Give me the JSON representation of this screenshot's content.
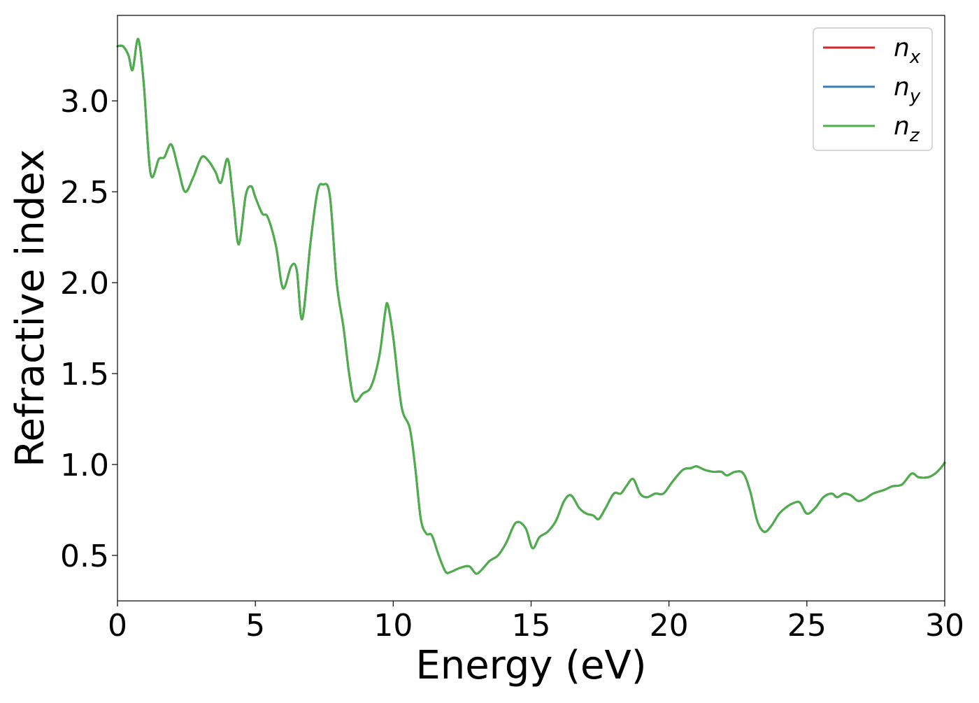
{
  "chart_data": {
    "type": "line",
    "title": "",
    "xlabel": "Energy (eV)",
    "ylabel": "Refractive index",
    "xlim": [
      0,
      30
    ],
    "ylim": [
      0.25,
      3.47
    ],
    "xticks": [
      0,
      5,
      10,
      15,
      20,
      25,
      30
    ],
    "xtick_labels": [
      "0",
      "5",
      "10",
      "15",
      "20",
      "25",
      "30"
    ],
    "yticks": [
      0.5,
      1.0,
      1.5,
      2.0,
      2.5,
      3.0
    ],
    "ytick_labels": [
      "0.5",
      "1.0",
      "1.5",
      "2.0",
      "2.5",
      "3.0"
    ],
    "grid": false,
    "legend_position": "top-right",
    "x": [
      0,
      0.2,
      0.4,
      0.55,
      0.75,
      0.95,
      1.2,
      1.5,
      1.7,
      1.95,
      2.2,
      2.45,
      2.75,
      3.05,
      3.3,
      3.55,
      3.75,
      4.0,
      4.2,
      4.4,
      4.65,
      4.85,
      5.0,
      5.25,
      5.45,
      5.75,
      6.0,
      6.3,
      6.5,
      6.7,
      7.0,
      7.25,
      7.45,
      7.7,
      7.95,
      8.2,
      8.4,
      8.6,
      8.9,
      9.2,
      9.5,
      9.7,
      9.8,
      10.0,
      10.3,
      10.6,
      10.8,
      11.0,
      11.2,
      11.4,
      11.65,
      11.9,
      12.1,
      12.4,
      12.75,
      13.0,
      13.2,
      13.5,
      13.8,
      14.1,
      14.45,
      14.8,
      15.05,
      15.3,
      15.6,
      15.9,
      16.2,
      16.45,
      16.75,
      17.0,
      17.25,
      17.45,
      17.7,
      18.0,
      18.25,
      18.45,
      18.7,
      18.95,
      19.2,
      19.5,
      19.8,
      20.1,
      20.5,
      20.8,
      21.0,
      21.3,
      21.6,
      21.9,
      22.1,
      22.4,
      22.7,
      22.95,
      23.2,
      23.45,
      23.7,
      24.0,
      24.3,
      24.55,
      24.75,
      25.0,
      25.3,
      25.6,
      25.9,
      26.1,
      26.35,
      26.6,
      26.85,
      27.1,
      27.4,
      27.8,
      28.1,
      28.45,
      28.8,
      29.05,
      29.4,
      29.65,
      29.85,
      30.0
    ],
    "series": [
      {
        "name": "n_x",
        "color": "#d62728",
        "values": [
          3.3,
          3.3,
          3.25,
          3.17,
          3.34,
          3.1,
          2.6,
          2.68,
          2.69,
          2.76,
          2.63,
          2.5,
          2.58,
          2.69,
          2.67,
          2.61,
          2.55,
          2.68,
          2.45,
          2.21,
          2.48,
          2.53,
          2.47,
          2.38,
          2.36,
          2.2,
          1.97,
          2.09,
          2.07,
          1.8,
          2.22,
          2.5,
          2.54,
          2.48,
          2.0,
          1.75,
          1.5,
          1.35,
          1.39,
          1.43,
          1.6,
          1.83,
          1.88,
          1.7,
          1.32,
          1.2,
          0.98,
          0.7,
          0.62,
          0.61,
          0.5,
          0.41,
          0.41,
          0.43,
          0.44,
          0.4,
          0.42,
          0.47,
          0.5,
          0.57,
          0.68,
          0.65,
          0.54,
          0.6,
          0.63,
          0.69,
          0.8,
          0.83,
          0.76,
          0.73,
          0.72,
          0.7,
          0.76,
          0.84,
          0.84,
          0.88,
          0.92,
          0.84,
          0.82,
          0.84,
          0.84,
          0.9,
          0.97,
          0.98,
          0.99,
          0.97,
          0.96,
          0.96,
          0.94,
          0.96,
          0.95,
          0.85,
          0.69,
          0.63,
          0.66,
          0.73,
          0.77,
          0.79,
          0.79,
          0.73,
          0.76,
          0.82,
          0.84,
          0.82,
          0.84,
          0.83,
          0.8,
          0.81,
          0.84,
          0.86,
          0.88,
          0.89,
          0.95,
          0.93,
          0.93,
          0.95,
          0.98,
          1.01
        ]
      },
      {
        "name": "n_y",
        "color": "#377eb8",
        "values": [
          3.3,
          3.3,
          3.25,
          3.17,
          3.34,
          3.1,
          2.6,
          2.68,
          2.69,
          2.76,
          2.63,
          2.5,
          2.58,
          2.69,
          2.67,
          2.61,
          2.55,
          2.68,
          2.45,
          2.21,
          2.48,
          2.53,
          2.47,
          2.38,
          2.36,
          2.2,
          1.97,
          2.09,
          2.07,
          1.8,
          2.22,
          2.5,
          2.54,
          2.48,
          2.0,
          1.75,
          1.5,
          1.35,
          1.39,
          1.43,
          1.6,
          1.83,
          1.88,
          1.7,
          1.32,
          1.2,
          0.98,
          0.7,
          0.62,
          0.61,
          0.5,
          0.41,
          0.41,
          0.43,
          0.44,
          0.4,
          0.42,
          0.47,
          0.5,
          0.57,
          0.68,
          0.65,
          0.54,
          0.6,
          0.63,
          0.69,
          0.8,
          0.83,
          0.76,
          0.73,
          0.72,
          0.7,
          0.76,
          0.84,
          0.84,
          0.88,
          0.92,
          0.84,
          0.82,
          0.84,
          0.84,
          0.9,
          0.97,
          0.98,
          0.99,
          0.97,
          0.96,
          0.96,
          0.94,
          0.96,
          0.95,
          0.85,
          0.69,
          0.63,
          0.66,
          0.73,
          0.77,
          0.79,
          0.79,
          0.73,
          0.76,
          0.82,
          0.84,
          0.82,
          0.84,
          0.83,
          0.8,
          0.81,
          0.84,
          0.86,
          0.88,
          0.89,
          0.95,
          0.93,
          0.93,
          0.95,
          0.98,
          1.01
        ]
      },
      {
        "name": "n_z",
        "color": "#4daf4a",
        "values": [
          3.3,
          3.3,
          3.25,
          3.17,
          3.34,
          3.1,
          2.6,
          2.68,
          2.69,
          2.76,
          2.63,
          2.5,
          2.58,
          2.69,
          2.67,
          2.61,
          2.55,
          2.68,
          2.45,
          2.21,
          2.48,
          2.53,
          2.47,
          2.38,
          2.36,
          2.2,
          1.97,
          2.09,
          2.07,
          1.8,
          2.22,
          2.5,
          2.54,
          2.48,
          2.0,
          1.75,
          1.5,
          1.35,
          1.39,
          1.43,
          1.6,
          1.83,
          1.88,
          1.7,
          1.32,
          1.2,
          0.98,
          0.7,
          0.62,
          0.61,
          0.5,
          0.41,
          0.41,
          0.43,
          0.44,
          0.4,
          0.42,
          0.47,
          0.5,
          0.57,
          0.68,
          0.65,
          0.54,
          0.6,
          0.63,
          0.69,
          0.8,
          0.83,
          0.76,
          0.73,
          0.72,
          0.7,
          0.76,
          0.84,
          0.84,
          0.88,
          0.92,
          0.84,
          0.82,
          0.84,
          0.84,
          0.9,
          0.97,
          0.98,
          0.99,
          0.97,
          0.96,
          0.96,
          0.94,
          0.96,
          0.95,
          0.85,
          0.69,
          0.63,
          0.66,
          0.73,
          0.77,
          0.79,
          0.79,
          0.73,
          0.76,
          0.82,
          0.84,
          0.82,
          0.84,
          0.83,
          0.8,
          0.81,
          0.84,
          0.86,
          0.88,
          0.89,
          0.95,
          0.93,
          0.93,
          0.95,
          0.98,
          1.01
        ]
      }
    ],
    "legend": [
      {
        "base": "n",
        "sub": "x",
        "color": "#d62728"
      },
      {
        "base": "n",
        "sub": "y",
        "color": "#377eb8"
      },
      {
        "base": "n",
        "sub": "z",
        "color": "#4daf4a"
      }
    ]
  }
}
